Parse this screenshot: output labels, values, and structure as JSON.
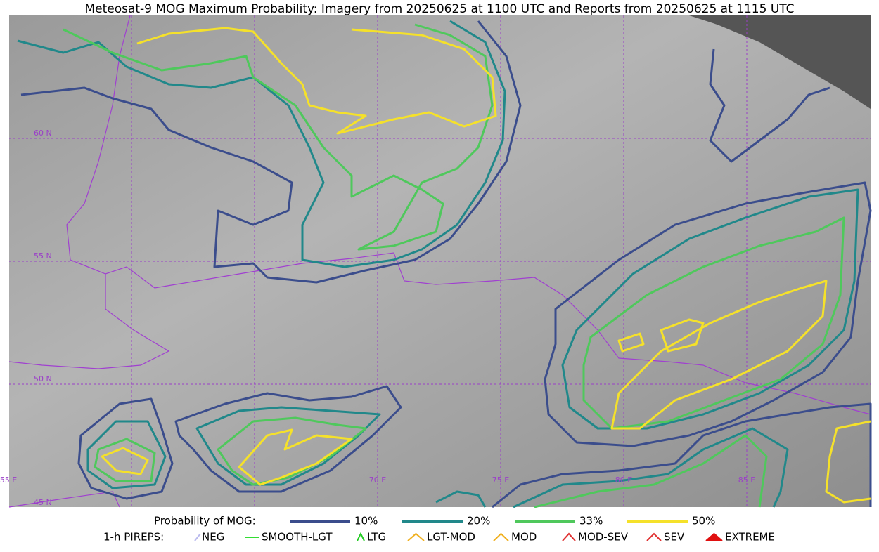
{
  "title": "Meteosat-9 MOG Maximum Probability: Imagery from 20250625 at 1100 UTC and Reports from 20250625 at 1115 UTC",
  "map": {
    "lat_labels": [
      "60 N",
      "55 N",
      "50 N",
      "45 N"
    ],
    "lon_labels": [
      "55 E",
      "70 E",
      "75 E",
      "80 E",
      "85 E"
    ]
  },
  "legend": {
    "probability_label": "Probability of MOG:",
    "probability": [
      {
        "label": "10%",
        "color": "#3b4d8c"
      },
      {
        "label": "20%",
        "color": "#21888a"
      },
      {
        "label": "33%",
        "color": "#4fc85c"
      },
      {
        "label": "50%",
        "color": "#f5e12a"
      }
    ],
    "pireps_label": "1-h PIREPS:",
    "pireps": [
      {
        "label": "NEG",
        "color": "#b9b9ee"
      },
      {
        "label": "SMOOTH-LGT",
        "color": "#33dd33"
      },
      {
        "label": "LTG",
        "color": "#22cc22"
      },
      {
        "label": "LGT-MOD",
        "color": "#f0b020"
      },
      {
        "label": "MOD",
        "color": "#f0b020"
      },
      {
        "label": "MOD-SEV",
        "color": "#e03030"
      },
      {
        "label": "SEV",
        "color": "#e03030"
      },
      {
        "label": "EXTREME",
        "color": "#e01010"
      }
    ]
  }
}
